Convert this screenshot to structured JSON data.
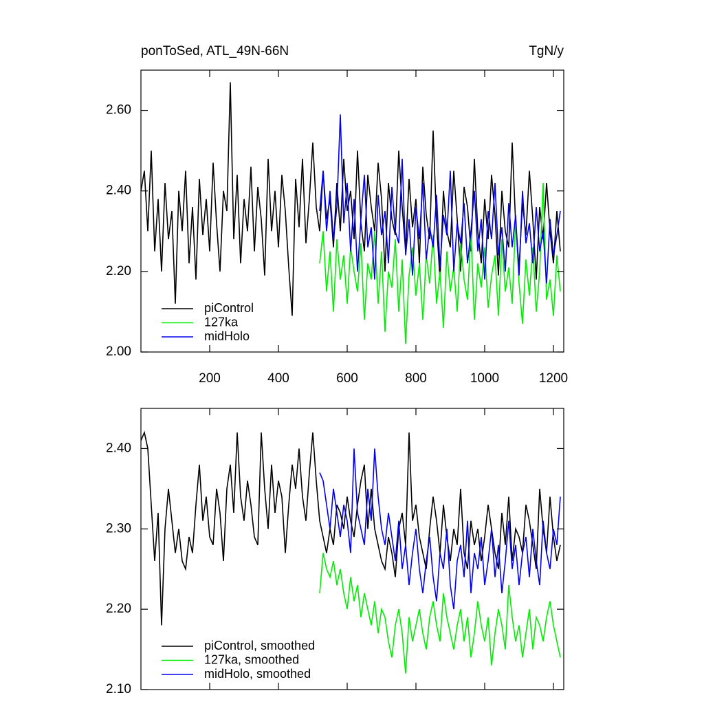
{
  "chart_data": [
    {
      "type": "line",
      "title": "ponToSed, ATL_49N-66N",
      "units": "TgN/y",
      "legend": "lower left",
      "xlim": [
        0,
        1230
      ],
      "ylim": [
        2.0,
        2.7
      ],
      "xticks": [
        200,
        400,
        600,
        800,
        1000,
        1200
      ],
      "yticks": [
        {
          "value": 2.0,
          "label": "2.00"
        },
        {
          "value": 2.2,
          "label": "2.20"
        },
        {
          "value": 2.4,
          "label": "2.40"
        },
        {
          "value": 2.6,
          "label": "2.60"
        }
      ],
      "x": [
        0,
        10,
        20,
        30,
        40,
        50,
        60,
        70,
        80,
        90,
        100,
        110,
        120,
        130,
        140,
        150,
        160,
        170,
        180,
        190,
        200,
        210,
        220,
        230,
        240,
        250,
        260,
        270,
        280,
        290,
        300,
        310,
        320,
        330,
        340,
        350,
        360,
        370,
        380,
        390,
        400,
        410,
        420,
        430,
        440,
        450,
        460,
        470,
        480,
        490,
        500,
        510,
        520,
        530,
        540,
        550,
        560,
        570,
        580,
        590,
        600,
        610,
        620,
        630,
        640,
        650,
        660,
        670,
        680,
        690,
        700,
        710,
        720,
        730,
        740,
        750,
        760,
        770,
        780,
        790,
        800,
        810,
        820,
        830,
        840,
        850,
        860,
        870,
        880,
        890,
        900,
        910,
        920,
        930,
        940,
        950,
        960,
        970,
        980,
        990,
        1000,
        1010,
        1020,
        1030,
        1040,
        1050,
        1060,
        1070,
        1080,
        1090,
        1100,
        1110,
        1120,
        1130,
        1140,
        1150,
        1160,
        1170,
        1180,
        1190,
        1200,
        1210,
        1220
      ],
      "series": [
        {
          "name": "piControl",
          "color": "#000000",
          "values": [
            2.4,
            2.45,
            2.3,
            2.5,
            2.25,
            2.38,
            2.2,
            2.42,
            2.28,
            2.35,
            2.12,
            2.4,
            2.3,
            2.45,
            2.22,
            2.36,
            2.18,
            2.43,
            2.29,
            2.38,
            2.25,
            2.47,
            2.32,
            2.2,
            2.4,
            2.35,
            2.67,
            2.28,
            2.44,
            2.22,
            2.38,
            2.3,
            2.46,
            2.25,
            2.41,
            2.33,
            2.19,
            2.48,
            2.3,
            2.4,
            2.26,
            2.44,
            2.35,
            2.21,
            2.09,
            2.43,
            2.31,
            2.48,
            2.27,
            2.38,
            2.52,
            2.36,
            2.3,
            2.45,
            2.33,
            2.38,
            2.26,
            2.42,
            2.3,
            2.48,
            2.35,
            2.4,
            2.28,
            2.5,
            2.32,
            2.25,
            2.44,
            2.36,
            2.3,
            2.47,
            2.38,
            2.2,
            2.42,
            2.33,
            2.29,
            2.5,
            2.36,
            2.25,
            2.43,
            2.31,
            2.38,
            2.22,
            2.46,
            2.34,
            2.28,
            2.55,
            2.32,
            2.18,
            2.4,
            2.3,
            2.26,
            2.45,
            2.33,
            2.2,
            2.41,
            2.36,
            2.25,
            2.48,
            2.3,
            2.22,
            2.38,
            2.28,
            2.44,
            2.34,
            2.19,
            2.4,
            2.3,
            2.26,
            2.52,
            2.32,
            2.21,
            2.37,
            2.29,
            2.45,
            2.33,
            2.18,
            2.36,
            2.28,
            2.42,
            2.3,
            2.22,
            2.35,
            2.25
          ]
        },
        {
          "name": "127ka",
          "color": "#00ee00",
          "values": [
            null,
            null,
            null,
            null,
            null,
            null,
            null,
            null,
            null,
            null,
            null,
            null,
            null,
            null,
            null,
            null,
            null,
            null,
            null,
            null,
            null,
            null,
            null,
            null,
            null,
            null,
            null,
            null,
            null,
            null,
            null,
            null,
            null,
            null,
            null,
            null,
            null,
            null,
            null,
            null,
            null,
            null,
            null,
            null,
            null,
            null,
            null,
            null,
            null,
            null,
            null,
            null,
            2.22,
            2.3,
            2.15,
            2.25,
            2.1,
            2.28,
            2.18,
            2.24,
            2.12,
            2.26,
            2.2,
            2.15,
            2.27,
            2.08,
            2.22,
            2.18,
            2.3,
            2.12,
            2.25,
            2.05,
            2.2,
            2.16,
            2.28,
            2.1,
            2.23,
            2.02,
            2.19,
            2.26,
            2.14,
            2.22,
            2.08,
            2.24,
            2.17,
            2.29,
            2.12,
            2.2,
            2.06,
            2.25,
            2.15,
            2.21,
            2.1,
            2.27,
            2.18,
            2.13,
            2.3,
            2.08,
            2.22,
            2.16,
            2.26,
            2.11,
            2.19,
            2.24,
            2.09,
            2.28,
            2.15,
            2.21,
            2.12,
            2.33,
            2.17,
            2.07,
            2.23,
            2.14,
            2.26,
            2.1,
            2.2,
            2.42,
            2.13,
            2.18,
            2.09,
            2.24,
            2.15
          ]
        },
        {
          "name": "midHolo",
          "color": "#0000ee",
          "values": [
            null,
            null,
            null,
            null,
            null,
            null,
            null,
            null,
            null,
            null,
            null,
            null,
            null,
            null,
            null,
            null,
            null,
            null,
            null,
            null,
            null,
            null,
            null,
            null,
            null,
            null,
            null,
            null,
            null,
            null,
            null,
            null,
            null,
            null,
            null,
            null,
            null,
            null,
            null,
            null,
            null,
            null,
            null,
            null,
            null,
            null,
            null,
            null,
            null,
            null,
            null,
            null,
            2.35,
            2.45,
            2.3,
            2.4,
            2.28,
            2.36,
            2.59,
            2.32,
            2.42,
            2.25,
            2.38,
            2.2,
            2.33,
            2.44,
            2.26,
            2.31,
            2.18,
            2.39,
            2.29,
            2.35,
            2.22,
            2.41,
            2.3,
            2.27,
            2.48,
            2.24,
            2.33,
            2.19,
            2.36,
            2.28,
            2.42,
            2.23,
            2.31,
            2.26,
            2.39,
            2.21,
            2.34,
            2.29,
            2.45,
            2.2,
            2.32,
            2.27,
            2.37,
            2.22,
            2.3,
            2.4,
            2.25,
            2.33,
            2.18,
            2.35,
            2.28,
            2.42,
            2.24,
            2.31,
            2.2,
            2.37,
            2.26,
            2.34,
            2.19,
            2.4,
            2.27,
            2.32,
            2.22,
            2.36,
            2.25,
            2.3,
            2.17,
            2.33,
            2.24,
            2.29,
            2.35
          ]
        }
      ]
    },
    {
      "type": "line",
      "legend": "lower left",
      "xlim": [
        0,
        1230
      ],
      "ylim": [
        2.1,
        2.45
      ],
      "xticks": [
        200,
        400,
        600,
        800,
        1000,
        1200
      ],
      "yticks": [
        {
          "value": 2.1,
          "label": "2.10"
        },
        {
          "value": 2.2,
          "label": "2.20"
        },
        {
          "value": 2.3,
          "label": "2.30"
        },
        {
          "value": 2.4,
          "label": "2.40"
        }
      ],
      "x": [
        0,
        10,
        20,
        30,
        40,
        50,
        60,
        70,
        80,
        90,
        100,
        110,
        120,
        130,
        140,
        150,
        160,
        170,
        180,
        190,
        200,
        210,
        220,
        230,
        240,
        250,
        260,
        270,
        280,
        290,
        300,
        310,
        320,
        330,
        340,
        350,
        360,
        370,
        380,
        390,
        400,
        410,
        420,
        430,
        440,
        450,
        460,
        470,
        480,
        490,
        500,
        510,
        520,
        530,
        540,
        550,
        560,
        570,
        580,
        590,
        600,
        610,
        620,
        630,
        640,
        650,
        660,
        670,
        680,
        690,
        700,
        710,
        720,
        730,
        740,
        750,
        760,
        770,
        780,
        790,
        800,
        810,
        820,
        830,
        840,
        850,
        860,
        870,
        880,
        890,
        900,
        910,
        920,
        930,
        940,
        950,
        960,
        970,
        980,
        990,
        1000,
        1010,
        1020,
        1030,
        1040,
        1050,
        1060,
        1070,
        1080,
        1090,
        1100,
        1110,
        1120,
        1130,
        1140,
        1150,
        1160,
        1170,
        1180,
        1190,
        1200,
        1210,
        1220
      ],
      "series": [
        {
          "name": "piControl, smoothed",
          "color": "#000000",
          "values": [
            2.41,
            2.42,
            2.4,
            2.33,
            2.26,
            2.32,
            2.18,
            2.3,
            2.35,
            2.31,
            2.27,
            2.3,
            2.26,
            2.25,
            2.29,
            2.27,
            2.33,
            2.38,
            2.31,
            2.34,
            2.29,
            2.28,
            2.35,
            2.32,
            2.26,
            2.35,
            2.38,
            2.32,
            2.42,
            2.34,
            2.31,
            2.36,
            2.33,
            2.29,
            2.28,
            2.42,
            2.35,
            2.3,
            2.38,
            2.32,
            2.36,
            2.34,
            2.27,
            2.33,
            2.38,
            2.35,
            2.4,
            2.34,
            2.31,
            2.37,
            2.42,
            2.36,
            2.31,
            2.29,
            2.27,
            2.3,
            2.28,
            2.33,
            2.32,
            2.3,
            2.34,
            2.31,
            2.29,
            2.33,
            2.36,
            2.38,
            2.3,
            2.35,
            2.3,
            2.28,
            2.26,
            2.25,
            2.29,
            2.27,
            2.24,
            2.3,
            2.32,
            2.28,
            2.42,
            2.31,
            2.33,
            2.29,
            2.27,
            2.25,
            2.3,
            2.34,
            2.31,
            2.27,
            2.33,
            2.29,
            2.26,
            2.3,
            2.28,
            2.35,
            2.27,
            2.25,
            2.31,
            2.28,
            2.3,
            2.26,
            2.29,
            2.33,
            2.3,
            2.27,
            2.25,
            2.32,
            2.28,
            2.34,
            2.26,
            2.3,
            2.29,
            2.27,
            2.33,
            2.31,
            2.28,
            2.25,
            2.35,
            2.3,
            2.27,
            2.34,
            2.29,
            2.26,
            2.28
          ]
        },
        {
          "name": "127ka, smoothed",
          "color": "#00ee00",
          "values": [
            null,
            null,
            null,
            null,
            null,
            null,
            null,
            null,
            null,
            null,
            null,
            null,
            null,
            null,
            null,
            null,
            null,
            null,
            null,
            null,
            null,
            null,
            null,
            null,
            null,
            null,
            null,
            null,
            null,
            null,
            null,
            null,
            null,
            null,
            null,
            null,
            null,
            null,
            null,
            null,
            null,
            null,
            null,
            null,
            null,
            null,
            null,
            null,
            null,
            null,
            null,
            null,
            2.22,
            2.27,
            2.25,
            2.24,
            2.26,
            2.23,
            2.25,
            2.22,
            2.2,
            2.24,
            2.21,
            2.23,
            2.19,
            2.22,
            2.2,
            2.18,
            2.21,
            2.17,
            2.2,
            2.19,
            2.16,
            2.14,
            2.18,
            2.2,
            2.17,
            2.12,
            2.19,
            2.16,
            2.18,
            2.2,
            2.17,
            2.15,
            2.19,
            2.21,
            2.18,
            2.16,
            2.22,
            2.19,
            2.17,
            2.15,
            2.18,
            2.2,
            2.16,
            2.19,
            2.14,
            2.17,
            2.21,
            2.18,
            2.16,
            2.19,
            2.13,
            2.17,
            2.2,
            2.18,
            2.15,
            2.23,
            2.19,
            2.16,
            2.18,
            2.14,
            2.17,
            2.2,
            2.15,
            2.19,
            2.18,
            2.16,
            2.19,
            2.21,
            2.18,
            2.16,
            2.14
          ]
        },
        {
          "name": "midHolo, smoothed",
          "color": "#0000ee",
          "values": [
            null,
            null,
            null,
            null,
            null,
            null,
            null,
            null,
            null,
            null,
            null,
            null,
            null,
            null,
            null,
            null,
            null,
            null,
            null,
            null,
            null,
            null,
            null,
            null,
            null,
            null,
            null,
            null,
            null,
            null,
            null,
            null,
            null,
            null,
            null,
            null,
            null,
            null,
            null,
            null,
            null,
            null,
            null,
            null,
            null,
            null,
            null,
            null,
            null,
            null,
            null,
            null,
            2.37,
            2.36,
            2.33,
            2.3,
            2.35,
            2.32,
            2.29,
            2.33,
            2.31,
            2.27,
            2.4,
            2.32,
            2.3,
            2.28,
            2.35,
            2.31,
            2.4,
            2.34,
            2.3,
            2.28,
            2.32,
            2.29,
            2.26,
            2.31,
            2.25,
            2.28,
            2.23,
            2.27,
            2.3,
            2.25,
            2.22,
            2.26,
            2.29,
            2.24,
            2.21,
            2.27,
            2.25,
            2.3,
            2.23,
            2.2,
            2.26,
            2.28,
            2.24,
            2.31,
            2.22,
            2.27,
            2.25,
            2.29,
            2.23,
            2.26,
            2.3,
            2.24,
            2.28,
            2.22,
            2.26,
            2.31,
            2.25,
            2.28,
            2.23,
            2.27,
            2.29,
            2.24,
            2.3,
            2.26,
            2.23,
            2.31,
            2.27,
            2.25,
            2.3,
            2.28,
            2.34
          ]
        }
      ]
    }
  ]
}
